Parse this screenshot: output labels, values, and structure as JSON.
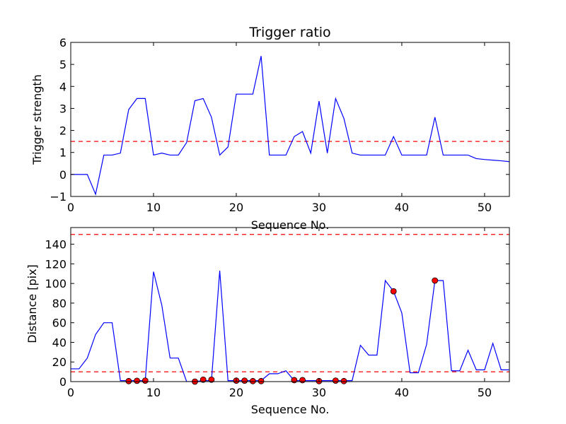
{
  "chart_data": [
    {
      "type": "line",
      "title": "Trigger ratio",
      "xlabel": "Sequence No.",
      "ylabel": "Trigger strength",
      "xlim": [
        0,
        53
      ],
      "ylim": [
        -1,
        6
      ],
      "xticks": [
        0,
        10,
        20,
        30,
        40,
        50
      ],
      "yticks": [
        -1,
        0,
        1,
        2,
        3,
        4,
        5,
        6
      ],
      "grid": false,
      "series": [
        {
          "color": "#0000ff",
          "x": [
            0,
            1,
            2,
            3,
            4,
            5,
            6,
            7,
            8,
            9,
            10,
            11,
            12,
            13,
            14,
            15,
            16,
            17,
            18,
            19,
            20,
            21,
            22,
            23,
            24,
            25,
            26,
            27,
            28,
            29,
            30,
            31,
            32,
            33,
            34,
            35,
            36,
            37,
            38,
            39,
            40,
            41,
            42,
            43,
            44,
            45,
            46,
            47,
            48,
            49,
            50,
            51,
            52,
            53
          ],
          "y": [
            0,
            0,
            0,
            -0.9,
            0.88,
            0.88,
            0.97,
            2.95,
            3.45,
            3.45,
            0.88,
            0.97,
            0.88,
            0.88,
            1.45,
            3.35,
            3.45,
            2.6,
            0.88,
            1.25,
            3.65,
            3.65,
            3.65,
            5.38,
            0.88,
            0.88,
            0.88,
            1.72,
            1.95,
            0.97,
            3.33,
            0.97,
            3.45,
            2.55,
            0.97,
            0.88,
            0.88,
            0.88,
            0.88,
            1.72,
            0.88,
            0.88,
            0.88,
            0.88,
            2.6,
            0.88,
            0.88,
            0.88,
            0.88,
            0.72,
            0.68,
            0.65,
            0.62,
            0.58
          ]
        }
      ],
      "reference_lines": [
        {
          "y": 1.5,
          "color": "#ff0000",
          "style": "dashed"
        }
      ]
    },
    {
      "type": "line",
      "title": "",
      "xlabel": "Sequence No.",
      "ylabel": "Distance [pix]",
      "xlim": [
        0,
        53
      ],
      "ylim": [
        0,
        157
      ],
      "xticks": [
        0,
        10,
        20,
        30,
        40,
        50
      ],
      "yticks": [
        0,
        20,
        40,
        60,
        80,
        100,
        120,
        140
      ],
      "grid": false,
      "series": [
        {
          "color": "#0000ff",
          "x": [
            0,
            1,
            2,
            3,
            4,
            5,
            6,
            7,
            8,
            9,
            10,
            11,
            12,
            13,
            14,
            15,
            16,
            17,
            18,
            19,
            20,
            21,
            22,
            23,
            24,
            25,
            26,
            27,
            28,
            29,
            30,
            31,
            32,
            33,
            34,
            35,
            36,
            37,
            38,
            39,
            40,
            41,
            42,
            43,
            44,
            45,
            46,
            47,
            48,
            49,
            50,
            51,
            52,
            53
          ],
          "y": [
            13,
            13,
            24,
            48,
            60,
            60,
            1,
            1,
            1,
            1,
            112,
            78,
            24,
            24,
            0,
            0,
            1,
            1,
            113,
            1,
            1,
            1,
            1,
            1,
            8,
            8,
            11,
            1,
            1,
            1,
            1,
            1,
            1,
            1,
            1,
            37,
            27,
            27,
            103,
            92,
            70,
            9,
            9,
            38,
            103,
            103,
            11,
            11,
            32,
            12,
            12,
            39,
            12,
            12
          ]
        }
      ],
      "markers": {
        "color": "#ff0000",
        "x": [
          7,
          8,
          9,
          15,
          16,
          17,
          20,
          21,
          22,
          23,
          27,
          28,
          30,
          32,
          33,
          39,
          44
        ],
        "y": [
          0.5,
          0.8,
          1,
          0,
          2,
          2,
          1,
          1,
          0.5,
          0.5,
          1.5,
          1.5,
          0.5,
          1,
          0.5,
          92,
          103
        ]
      },
      "reference_lines": [
        {
          "y": 10,
          "color": "#ff0000",
          "style": "dashed"
        },
        {
          "y": 150,
          "color": "#ff0000",
          "style": "dashed"
        }
      ]
    }
  ]
}
